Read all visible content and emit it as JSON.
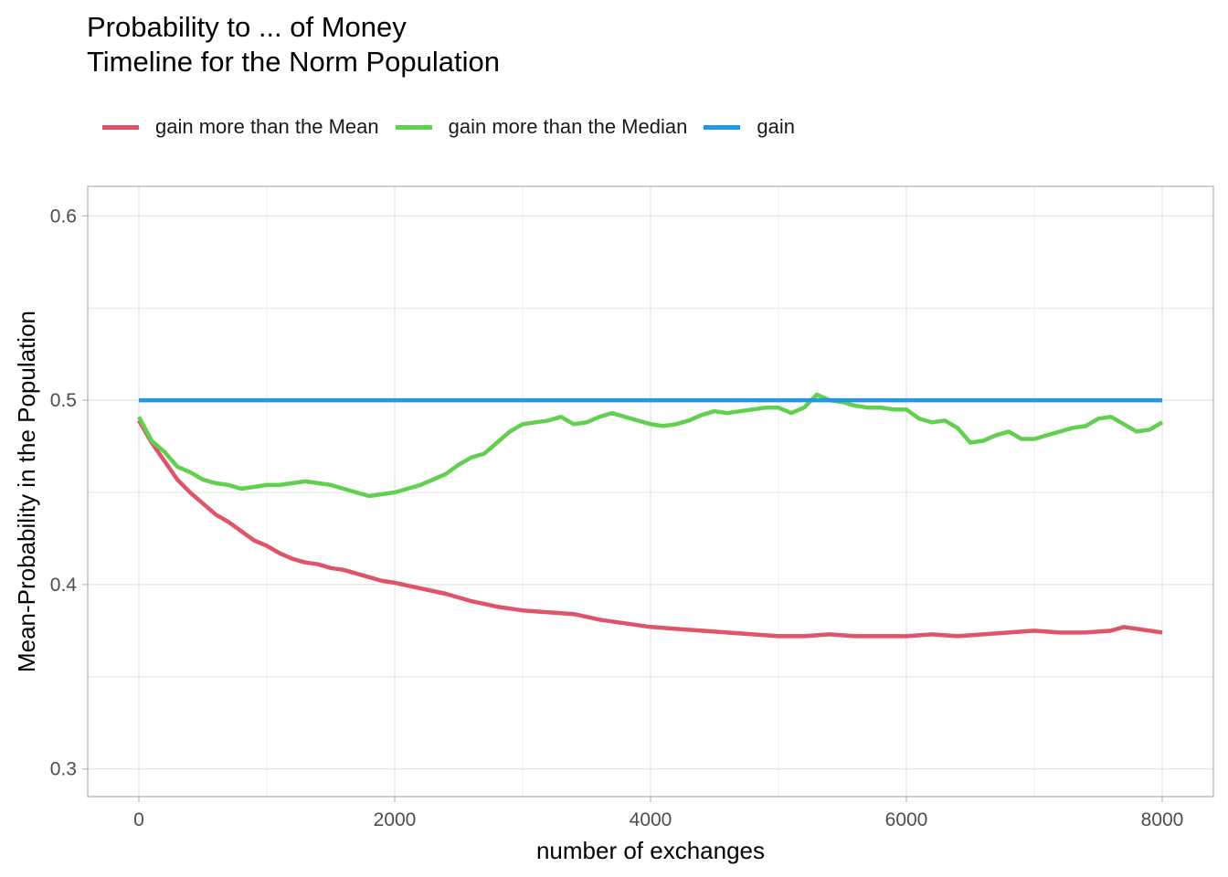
{
  "title_lines": [
    "Probability to ... of Money",
    "Timeline for the Norm Population"
  ],
  "chart_data": {
    "type": "line",
    "title": "Probability to ... of Money\nTimeline for the Norm Population",
    "xlabel": "number of exchanges",
    "ylabel": "Mean-Probability in the Population",
    "xlim": [
      -400,
      8400
    ],
    "ylim": [
      0.285,
      0.616
    ],
    "x_ticks": [
      0,
      2000,
      4000,
      6000,
      8000
    ],
    "y_ticks": [
      0.3,
      0.4,
      0.5,
      0.6
    ],
    "x_tick_labels": [
      "0",
      "2000",
      "4000",
      "6000",
      "8000"
    ],
    "y_tick_labels": [
      "0.3",
      "0.4",
      "0.5",
      "0.6"
    ],
    "grid": true,
    "legend_position": "top",
    "series": [
      {
        "name": "gain more than the Mean",
        "color": "#DF536B",
        "x": [
          0,
          100,
          200,
          300,
          400,
          500,
          600,
          700,
          800,
          900,
          1000,
          1100,
          1200,
          1300,
          1400,
          1500,
          1600,
          1700,
          1800,
          1900,
          2000,
          2200,
          2400,
          2600,
          2800,
          3000,
          3200,
          3400,
          3600,
          3800,
          4000,
          4200,
          4400,
          4600,
          4800,
          5000,
          5200,
          5400,
          5600,
          5800,
          6000,
          6200,
          6400,
          6600,
          6800,
          7000,
          7200,
          7400,
          7600,
          7700,
          7800,
          8000
        ],
        "y": [
          0.489,
          0.477,
          0.467,
          0.457,
          0.45,
          0.444,
          0.438,
          0.434,
          0.429,
          0.424,
          0.421,
          0.417,
          0.414,
          0.412,
          0.411,
          0.409,
          0.408,
          0.406,
          0.404,
          0.402,
          0.401,
          0.398,
          0.395,
          0.391,
          0.388,
          0.386,
          0.385,
          0.384,
          0.381,
          0.379,
          0.377,
          0.376,
          0.375,
          0.374,
          0.373,
          0.372,
          0.372,
          0.373,
          0.372,
          0.372,
          0.372,
          0.373,
          0.372,
          0.373,
          0.374,
          0.375,
          0.374,
          0.374,
          0.375,
          0.377,
          0.376,
          0.374
        ]
      },
      {
        "name": "gain more than the Median",
        "color": "#61D04F",
        "x": [
          0,
          100,
          200,
          300,
          400,
          500,
          600,
          700,
          800,
          900,
          1000,
          1100,
          1200,
          1300,
          1400,
          1500,
          1600,
          1700,
          1800,
          1900,
          2000,
          2100,
          2200,
          2300,
          2400,
          2500,
          2600,
          2700,
          2800,
          2900,
          3000,
          3100,
          3200,
          3300,
          3400,
          3500,
          3600,
          3700,
          3800,
          3900,
          4000,
          4100,
          4200,
          4300,
          4400,
          4500,
          4600,
          4700,
          4800,
          4900,
          5000,
          5100,
          5200,
          5300,
          5400,
          5500,
          5600,
          5700,
          5800,
          5900,
          6000,
          6100,
          6200,
          6300,
          6400,
          6500,
          6600,
          6700,
          6800,
          6900,
          7000,
          7100,
          7200,
          7300,
          7400,
          7500,
          7600,
          7700,
          7800,
          7900,
          8000
        ],
        "y": [
          0.491,
          0.478,
          0.472,
          0.464,
          0.461,
          0.457,
          0.455,
          0.454,
          0.452,
          0.453,
          0.454,
          0.454,
          0.455,
          0.456,
          0.455,
          0.454,
          0.452,
          0.45,
          0.448,
          0.449,
          0.45,
          0.452,
          0.454,
          0.457,
          0.46,
          0.465,
          0.469,
          0.471,
          0.477,
          0.483,
          0.487,
          0.488,
          0.489,
          0.491,
          0.487,
          0.488,
          0.491,
          0.493,
          0.491,
          0.489,
          0.487,
          0.486,
          0.487,
          0.489,
          0.492,
          0.494,
          0.493,
          0.494,
          0.495,
          0.496,
          0.496,
          0.493,
          0.496,
          0.503,
          0.5,
          0.499,
          0.497,
          0.496,
          0.496,
          0.495,
          0.495,
          0.49,
          0.488,
          0.489,
          0.485,
          0.477,
          0.478,
          0.481,
          0.483,
          0.479,
          0.479,
          0.481,
          0.483,
          0.485,
          0.486,
          0.49,
          0.491,
          0.487,
          0.483,
          0.484,
          0.488
        ]
      },
      {
        "name": "gain",
        "color": "#2297E6",
        "x": [
          0,
          8000
        ],
        "y": [
          0.5,
          0.5
        ]
      }
    ]
  }
}
